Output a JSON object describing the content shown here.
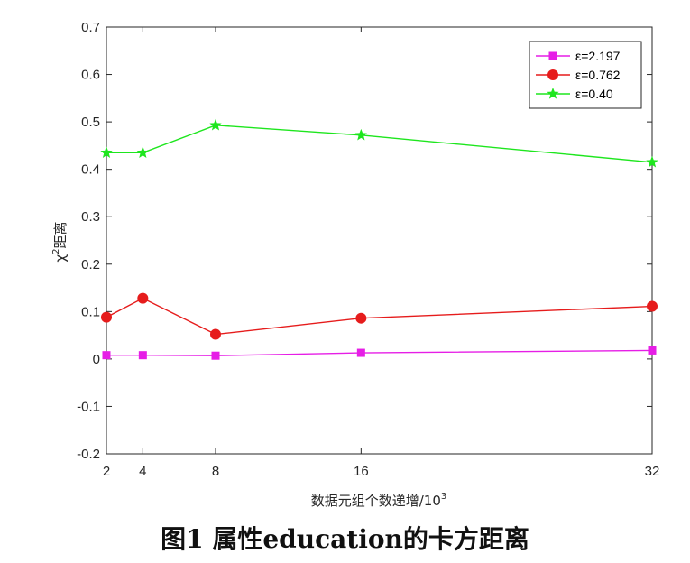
{
  "caption": "图1   属性education的卡方距离",
  "chart_data": {
    "type": "line",
    "title": "",
    "xlabel": "数据元组个数递增/10",
    "xlabel_sup": "3",
    "ylabel": "χ",
    "ylabel_sup": "2",
    "ylabel_rest": "距离",
    "x": [
      2,
      4,
      8,
      16,
      32
    ],
    "xlim": [
      2,
      32
    ],
    "ylim": [
      -0.2,
      0.7
    ],
    "xticks": [
      "2",
      "4",
      "8",
      "16",
      "32"
    ],
    "yticks": [
      "0.7",
      "0.6",
      "0.5",
      "0.4",
      "0.3",
      "0.2",
      "0.1",
      "0",
      "-0.1",
      "-0.2"
    ],
    "grid": false,
    "legend_position": "top-right",
    "series": [
      {
        "name": "ε=2.197",
        "marker": "square",
        "color": "#e61ee6",
        "values": [
          0.008,
          0.008,
          0.007,
          0.013,
          0.018
        ]
      },
      {
        "name": "ε=0.762",
        "marker": "circle",
        "color": "#e61c1c",
        "values": [
          0.088,
          0.128,
          0.052,
          0.086,
          0.111
        ]
      },
      {
        "name": "ε=0.40",
        "marker": "star",
        "color": "#1ee61e",
        "values": [
          0.435,
          0.435,
          0.493,
          0.472,
          0.415
        ]
      }
    ]
  }
}
